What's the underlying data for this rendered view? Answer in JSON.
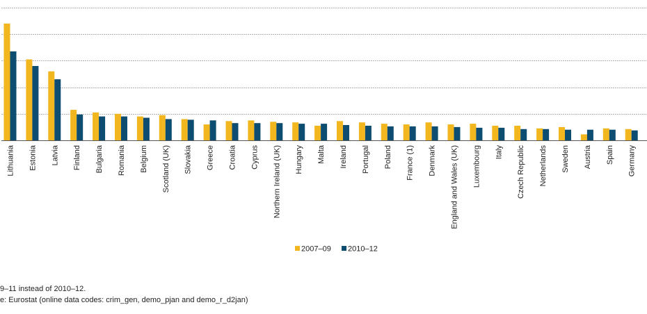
{
  "chart_data": {
    "type": "bar",
    "categories": [
      "Lithuania",
      "Estonia",
      "Latvia",
      "Finland",
      "Bulgaria",
      "Romania",
      "Belgium",
      "Scotland (UK)",
      "Slovakia",
      "Greece",
      "Croatia",
      "Cyprus",
      "Northern Ireland (UK)",
      "Hungary",
      "Malta",
      "Ireland",
      "Portugal",
      "Poland",
      "France (1)",
      "Denmark",
      "England and Wales (UK)",
      "Luxembourg",
      "Italy",
      "Czech Republic",
      "Netherlands",
      "Sweden",
      "Austria",
      "Spain",
      "Germany"
    ],
    "series": [
      {
        "name": "2007–09",
        "color": "#f2b61e",
        "values": [
          8.8,
          6.1,
          5.2,
          2.3,
          2.1,
          2.0,
          1.8,
          1.9,
          1.6,
          1.2,
          1.45,
          1.5,
          1.4,
          1.35,
          1.1,
          1.45,
          1.35,
          1.25,
          1.2,
          1.35,
          1.2,
          1.25,
          1.1,
          1.1,
          0.9,
          1.0,
          0.45,
          0.9,
          0.85
        ]
      },
      {
        "name": "2010–12",
        "color": "#0e4d72",
        "values": [
          6.7,
          5.6,
          4.6,
          1.95,
          1.8,
          1.8,
          1.7,
          1.6,
          1.55,
          1.5,
          1.3,
          1.3,
          1.3,
          1.25,
          1.25,
          1.15,
          1.1,
          1.05,
          1.05,
          1.05,
          1.0,
          0.95,
          0.95,
          0.85,
          0.85,
          0.8,
          0.8,
          0.8,
          0.75
        ]
      }
    ],
    "ylim": [
      0,
      10
    ],
    "grid": true,
    "legend_position": "bottom-center",
    "xlabel": "",
    "ylabel": ""
  },
  "footnotes": {
    "note": "9–11 instead of 2010–12.",
    "source": "e: Eurostat (online data codes: crim_gen, demo_pjan and demo_r_d2jan)"
  }
}
